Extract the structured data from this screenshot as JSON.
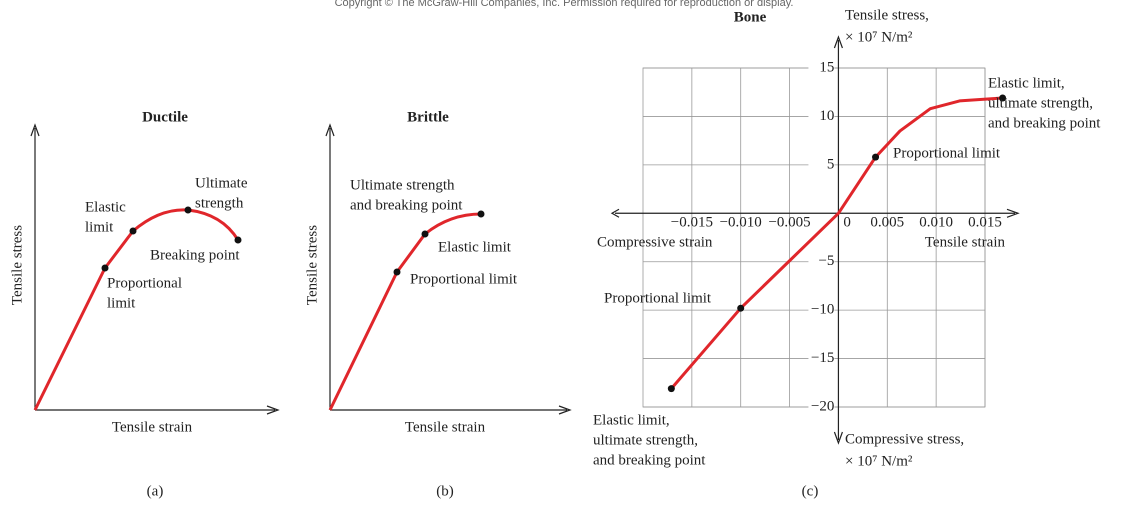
{
  "copyright": "Copyright © The McGraw-Hill Companies, Inc. Permission required for reproduction or display.",
  "panels": [
    {
      "title": "Ductile",
      "x_label": "Tensile strain",
      "y_label": "Tensile stress",
      "caption": "(a)",
      "labels": [
        [
          "Elastic",
          "limit"
        ],
        [
          "Ultimate",
          "strength"
        ],
        [
          "Breaking point"
        ],
        [
          "Proportional",
          "limit"
        ]
      ]
    },
    {
      "title": "Brittle",
      "x_label": "Tensile strain",
      "y_label": "Tensile stress",
      "caption": "(b)",
      "labels": [
        [
          "Ultimate strength",
          "and breaking point"
        ],
        [
          "Elastic limit"
        ],
        [
          "Proportional limit"
        ]
      ]
    }
  ],
  "chart_data": {
    "type": "line",
    "title": "Bone",
    "caption": "(c)",
    "color": "#e0262b",
    "x_label": "Tensile strain",
    "x_label_negative": "Compressive strain",
    "y_label": [
      "Tensile stress,",
      "× 10⁷ N/m²"
    ],
    "y_label_negative": [
      "Compressive stress,",
      "× 10⁷ N/m²"
    ],
    "annotations": [
      [
        "Elastic limit,",
        "ultimate strength,",
        "and breaking point"
      ],
      [
        "Proportional limit"
      ],
      [
        "Proportional limit"
      ],
      [
        "Elastic limit,",
        "ultimate strength,",
        "and breaking point"
      ]
    ],
    "x": [
      -0.0171,
      -0.01,
      -0.005,
      0,
      0.0038,
      0.0063,
      0.0094,
      0.0124,
      0.0168
    ],
    "values": [
      -18.1,
      -9.8,
      -4.9,
      0,
      5.8,
      8.5,
      10.8,
      11.6,
      11.9
    ],
    "xlim": [
      -0.02,
      0.015
    ],
    "ylim": [
      -20,
      15
    ],
    "xticks": [
      {
        "value": -0.015,
        "label": "−0.015"
      },
      {
        "value": -0.01,
        "label": "−0.010"
      },
      {
        "value": -0.005,
        "label": "−0.005"
      },
      0,
      0.005,
      {
        "value": 0.01,
        "label": "0.010"
      },
      0.015
    ],
    "yticks": [
      {
        "value": -20,
        "label": "−20"
      },
      {
        "value": -15,
        "label": "−15"
      },
      {
        "value": -10,
        "label": "−10"
      },
      {
        "value": -5,
        "label": "−5"
      },
      5,
      10,
      15
    ],
    "grid": true
  }
}
